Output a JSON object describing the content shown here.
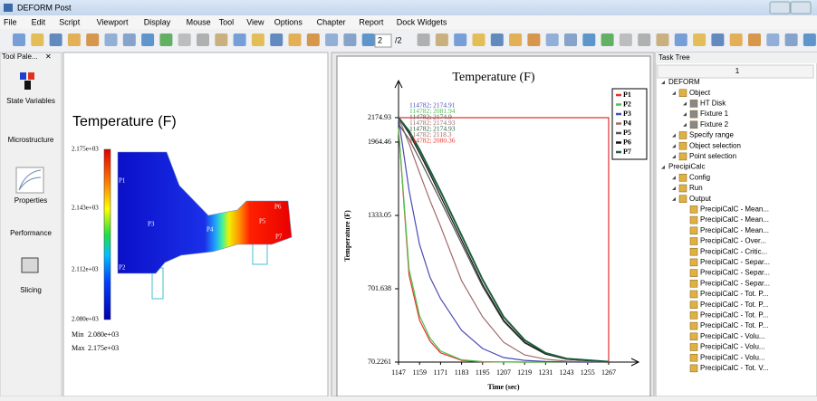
{
  "window": {
    "title": "DEFORM Post"
  },
  "menu": [
    "File",
    "Edit",
    "Script",
    "Viewport",
    "Display",
    "Mouse",
    "Tool",
    "View",
    "Options",
    "Chapter",
    "Report",
    "Dock Widgets"
  ],
  "toolbar": {
    "page": "2",
    "page_total": "/2"
  },
  "tool_palette": {
    "title": "Tool Pale...",
    "items": [
      "State Variables",
      "Microstructure",
      "Properties",
      "Performance",
      "Slicing"
    ]
  },
  "viewport": {
    "title": "Temperature (F)",
    "legend_labels": [
      "2.175e+03",
      "2.143e+03",
      "2.112e+03",
      "2.080e+03"
    ],
    "min_label": "Min",
    "min_value": "2.080e+03",
    "max_label": "Max",
    "max_value": "2.175e+03",
    "points": [
      "P1",
      "P2",
      "P3",
      "P4",
      "P5",
      "P6",
      "P7"
    ]
  },
  "task_tree": {
    "title": "Task Tree",
    "column": "1",
    "items": [
      {
        "label": "DEFORM",
        "level": 0
      },
      {
        "label": "Object",
        "level": 1
      },
      {
        "label": "HT Disk",
        "level": 2
      },
      {
        "label": "Fixture 1",
        "level": 2
      },
      {
        "label": "Fixture 2",
        "level": 2
      },
      {
        "label": "Specify range",
        "level": 1
      },
      {
        "label": "Object selection",
        "level": 1
      },
      {
        "label": "Point selection",
        "level": 1
      },
      {
        "label": "PrecipiCalc",
        "level": 0
      },
      {
        "label": "Config",
        "level": 1
      },
      {
        "label": "Run",
        "level": 1
      },
      {
        "label": "Output",
        "level": 1
      },
      {
        "label": "PrecipiCalC - Mean...",
        "level": 2
      },
      {
        "label": "PrecipiCalC - Mean...",
        "level": 2
      },
      {
        "label": "PrecipiCalC - Mean...",
        "level": 2
      },
      {
        "label": "PrecipiCalC - Over...",
        "level": 2
      },
      {
        "label": "PrecipiCalC - Critic...",
        "level": 2
      },
      {
        "label": "PrecipiCalC - Separ...",
        "level": 2
      },
      {
        "label": "PrecipiCalC - Separ...",
        "level": 2
      },
      {
        "label": "PrecipiCalC - Separ...",
        "level": 2
      },
      {
        "label": "PrecipiCalC - Tot. P...",
        "level": 2
      },
      {
        "label": "PrecipiCalC - Tot. P...",
        "level": 2
      },
      {
        "label": "PrecipiCalC - Tot. P...",
        "level": 2
      },
      {
        "label": "PrecipiCalC - Tot. P...",
        "level": 2
      },
      {
        "label": "PrecipiCalC - Volu...",
        "level": 2
      },
      {
        "label": "PrecipiCalC - Volu...",
        "level": 2
      },
      {
        "label": "PrecipiCalC - Volu...",
        "level": 2
      },
      {
        "label": "PrecipiCalC - Tot. V...",
        "level": 2
      }
    ]
  },
  "chart_data": {
    "type": "line",
    "title": "Temperature (F)",
    "x_label": "Time (sec)",
    "y_label": "Temperature (F)",
    "x": [
      1147,
      1153,
      1159,
      1165,
      1171,
      1183,
      1195,
      1207,
      1219,
      1231,
      1243,
      1267
    ],
    "series": [
      {
        "name": "P1",
        "color": "#e8312a",
        "values": [
          2080.36,
          820,
          430,
          250,
          150,
          85,
          72,
          71,
          70.5,
          70.3,
          70.3,
          70.2261
        ]
      },
      {
        "name": "P2",
        "color": "#4cc24c",
        "values": [
          2081.94,
          870,
          470,
          275,
          165,
          90,
          74,
          71,
          70.5,
          70.3,
          70.3,
          70.2261
        ]
      },
      {
        "name": "P3",
        "color": "#4a4ab8",
        "values": [
          2174.91,
          1550,
          1083,
          800,
          616,
          343,
          187,
          109,
          85,
          75,
          72,
          70.3
        ]
      },
      {
        "name": "P4",
        "color": "#a06a6a",
        "values": [
          2174.93,
          1950,
          1700,
          1460,
          1239,
          771,
          460,
          241,
          132,
          95,
          78,
          71
        ]
      },
      {
        "name": "P5",
        "color": "#555555",
        "values": [
          2118.3,
          1990,
          1820,
          1640,
          1460,
          1090,
          720,
          420,
          235,
          138,
          94,
          72
        ]
      },
      {
        "name": "P6",
        "color": "#111111",
        "values": [
          2174.9,
          2040,
          1870,
          1690,
          1500,
          1120,
          740,
          430,
          240,
          140,
          95,
          72
        ]
      },
      {
        "name": "P7",
        "color": "#1d5e3c",
        "values": [
          2174.93,
          2060,
          1900,
          1720,
          1540,
          1161,
          780,
          460,
          260,
          148,
          100,
          73
        ]
      }
    ],
    "xlim": [
      1147,
      1281
    ],
    "ylim": [
      70.2261,
      2400
    ],
    "xticks": [
      1147,
      1159,
      1171,
      1183,
      1195,
      1207,
      1219,
      1231,
      1243,
      1255,
      1267
    ],
    "yticks": [
      70.2261,
      701.638,
      1333.05,
      1964.46,
      2174.93
    ],
    "limit_color": "#e03030",
    "annotations": [
      {
        "text": "114782;  2174.91",
        "color": "#4a4ab8"
      },
      {
        "text": "114782;  2081.94",
        "color": "#4cc24c"
      },
      {
        "text": "114782;  2174.9",
        "color": "#555555"
      },
      {
        "text": "114782;  2174.93",
        "color": "#a06a6a"
      },
      {
        "text": "114782;  2174.93",
        "color": "#1d5e3c"
      },
      {
        "text": "114782;  2118.3",
        "color": "#a06a6a"
      },
      {
        "text": "114782;  2080.36",
        "color": "#e8312a"
      }
    ]
  }
}
